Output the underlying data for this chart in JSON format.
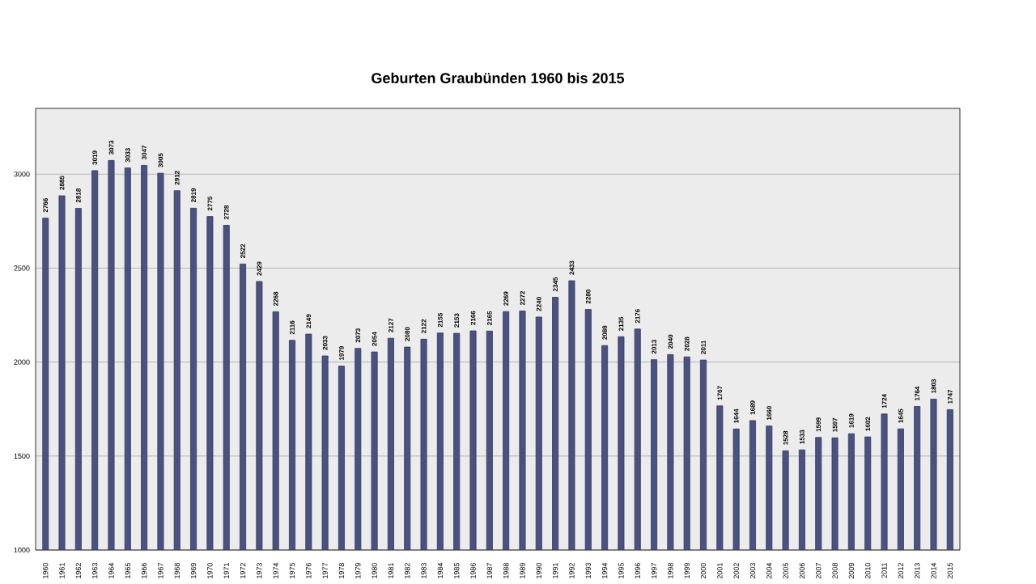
{
  "chart_data": {
    "type": "bar",
    "title": "Geburten Graubünden 1960 bis 2015",
    "categories": [
      "1960",
      "1961",
      "1962",
      "1963",
      "1964",
      "1965",
      "1966",
      "1967",
      "1968",
      "1969",
      "1970",
      "1971",
      "1972",
      "1973",
      "1974",
      "1975",
      "1976",
      "1977",
      "1978",
      "1979",
      "1980",
      "1981",
      "1982",
      "1983",
      "1984",
      "1985",
      "1986",
      "1987",
      "1988",
      "1989",
      "1990",
      "1991",
      "1992",
      "1993",
      "1994",
      "1995",
      "1996",
      "1997",
      "1998",
      "1999",
      "2000",
      "2001",
      "2002",
      "2003",
      "2004",
      "2005",
      "2006",
      "2007",
      "2008",
      "2009",
      "2010",
      "2011",
      "2012",
      "2013",
      "2014",
      "2015"
    ],
    "values": [
      2766,
      2885,
      2818,
      3019,
      3073,
      3033,
      3047,
      3005,
      2912,
      2819,
      2775,
      2728,
      2522,
      2429,
      2268,
      2116,
      2149,
      2033,
      1979,
      2073,
      2054,
      2127,
      2080,
      2122,
      2155,
      2153,
      2166,
      2165,
      2269,
      2272,
      2240,
      2345,
      2433,
      2280,
      2088,
      2135,
      2176,
      2013,
      2040,
      2028,
      2011,
      1767,
      1644,
      1689,
      1660,
      1528,
      1533,
      1599,
      1597,
      1619,
      1602,
      1724,
      1645,
      1764,
      1803,
      1747
    ],
    "color": "#4a5282",
    "ylim": [
      1000,
      3350
    ],
    "yticks": [
      1000,
      1500,
      2000,
      2500,
      3000
    ],
    "grid": "y",
    "data_labels": true
  }
}
